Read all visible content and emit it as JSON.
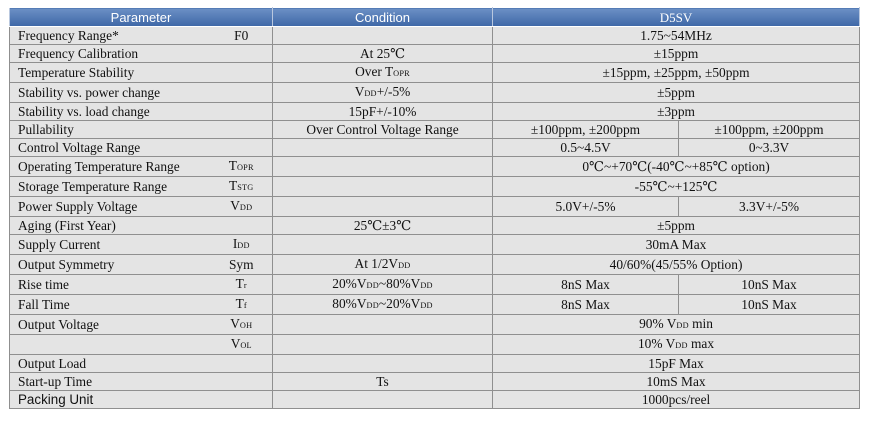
{
  "header": {
    "parameter": "Parameter",
    "condition": "Condition",
    "model": "D5SV"
  },
  "rows": [
    {
      "param": "Frequency Range*",
      "sym": "F0",
      "cond": "",
      "v1": "1.75~54MHz"
    },
    {
      "param": "Frequency Calibration",
      "sym": "",
      "cond": "At 25℃",
      "v1": "±15ppm"
    },
    {
      "param": "Temperature Stability",
      "sym": "",
      "cond_main": "Over T",
      "cond_sub": "OPR",
      "v1": "±15ppm, ±25ppm, ±50ppm"
    },
    {
      "param": "Stability vs. power change",
      "sym": "",
      "cond_main": "V",
      "cond_sub": "DD",
      "cond_tail": "+/-5%",
      "v1": "±5ppm"
    },
    {
      "param": "Stability vs. load change",
      "sym": "",
      "cond": "15pF+/-10%",
      "v1": "±3ppm"
    },
    {
      "param": "Pullability",
      "sym": "",
      "cond": "Over Control Voltage Range",
      "v1": "±100ppm, ±200ppm",
      "v2": "±100ppm, ±200ppm"
    },
    {
      "param": "Control Voltage Range",
      "sym": "",
      "cond": "",
      "v1": "0.5~4.5V",
      "v2": "0~3.3V"
    },
    {
      "param": "Operating Temperature Range",
      "sym_main": "T",
      "sym_sub": "OPR",
      "cond": "",
      "v1": "0℃~+70℃(-40℃~+85℃ option)"
    },
    {
      "param": "Storage Temperature Range",
      "sym_main": "T",
      "sym_sub": "STG",
      "cond": "",
      "v1": "-55℃~+125℃"
    },
    {
      "param": "Power Supply Voltage",
      "sym_main": "V",
      "sym_sub": "DD",
      "cond": "",
      "v1": "5.0V+/-5%",
      "v2": "3.3V+/-5%"
    },
    {
      "param": "Aging (First Year)",
      "sym": "",
      "cond": "25℃±3℃",
      "v1": "±5ppm"
    },
    {
      "param": "Supply Current",
      "sym_main": "I",
      "sym_sub": "DD",
      "cond": "",
      "v1": "30mA Max"
    },
    {
      "param": "Output Symmetry",
      "sym": "Sym",
      "cond_main": "At 1/2V",
      "cond_sub": "DD",
      "v1": "40/60%(45/55% Option)"
    },
    {
      "param": "Rise time",
      "sym_main": "T",
      "sym_sub": "r",
      "cond": "20%VDD~80%VDD",
      "v1": "8nS Max",
      "v2": "10nS Max"
    },
    {
      "param": "Fall Time",
      "sym_main": "T",
      "sym_sub": "f",
      "cond": "80%VDD~20%VDD",
      "v1": "8nS Max",
      "v2": "10nS Max"
    },
    {
      "param": "Output Voltage",
      "sym_main": "V",
      "sym_sub": "OH",
      "cond": "",
      "v1_pre": "90% V",
      "v1_sub": "DD",
      "v1_tail": " min"
    },
    {
      "param": "",
      "sym_main": "V",
      "sym_sub": "OL",
      "cond": "",
      "v1_pre": "10% V",
      "v1_sub": "DD",
      "v1_tail": " max"
    },
    {
      "param": "Output Load",
      "sym": "",
      "cond": "",
      "v1": "15pF Max"
    },
    {
      "param": "Start-up Time",
      "sym": "",
      "cond": "Ts",
      "v1": "10mS Max"
    },
    {
      "param": "Packing Unit",
      "sym": "",
      "cond": "",
      "v1": "1000pcs/reel"
    }
  ],
  "rise_cond": {
    "a": "20%V",
    "a_sub": "DD",
    "b": "~80%V",
    "b_sub": "DD"
  },
  "fall_cond": {
    "a": "80%V",
    "a_sub": "DD",
    "b": "~20%V",
    "b_sub": "DD"
  }
}
